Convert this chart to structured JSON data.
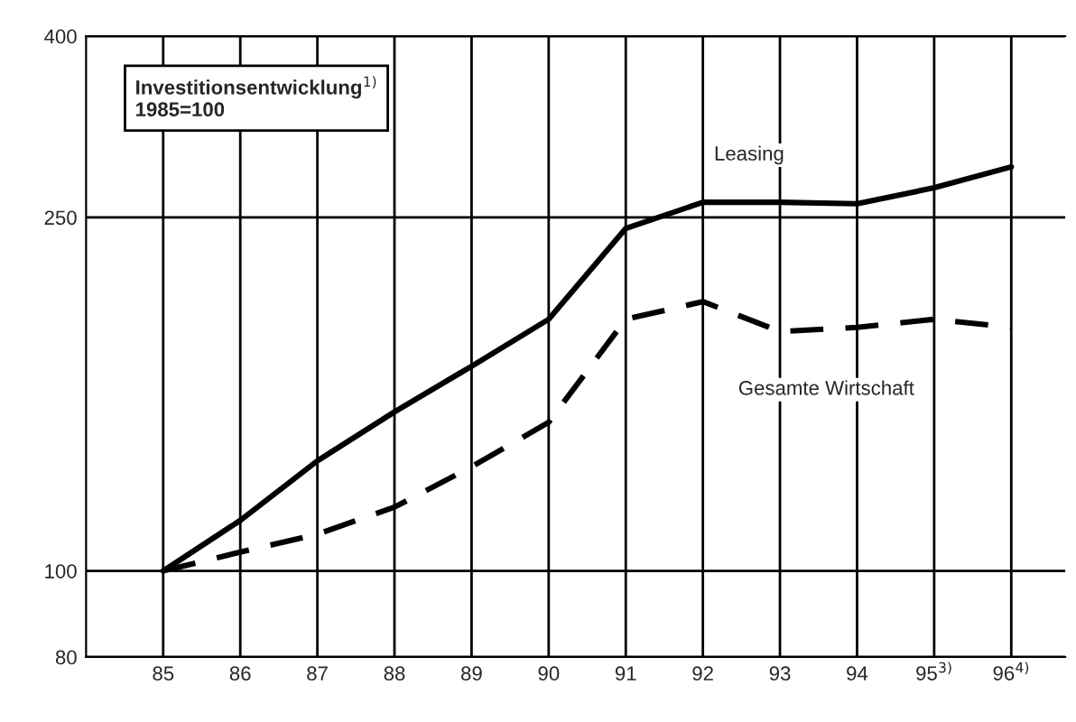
{
  "chart_data": {
    "type": "line",
    "annotations": [
      "Investitionsentwicklung$^{1)}$\n1985=100"
    ],
    "categories": [
      "85",
      "86",
      "87",
      "88",
      "89",
      "90",
      "91",
      "92",
      "93",
      "94",
      "95$^{3)}$",
      "96$^{4)}$"
    ],
    "series": [
      {
        "name": "Leasing",
        "color": "#000000",
        "line_style": "solid",
        "values": [
          100,
          114,
          133,
          151,
          170,
          192,
          243,
          260,
          260,
          259,
          270,
          285
        ]
      },
      {
        "name": "Gesamte Wirtschaft",
        "color": "#000000",
        "line_style": "dashed",
        "values": [
          100,
          105,
          110,
          118,
          131,
          147,
          192,
          201,
          186,
          188,
          192,
          188
        ]
      }
    ],
    "log": true,
    "ylim": [
      80,
      400
    ],
    "yticks": [
      80,
      100,
      250,
      400
    ],
    "grid": true,
    "legend": false,
    "marker": "none"
  }
}
